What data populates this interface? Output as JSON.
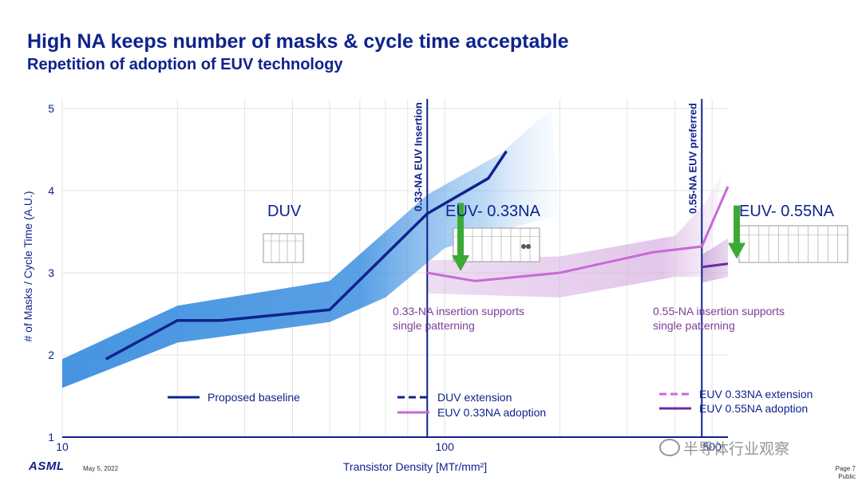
{
  "title": "High NA keeps number of masks & cycle time acceptable",
  "subtitle": "Repetition of adoption of EUV technology",
  "footer": {
    "logo": "ASML",
    "date": "May 5, 2022",
    "page": "Page 7",
    "classification": "Public",
    "watermark": "半导体行业观察"
  },
  "chart_data": {
    "type": "line",
    "xlabel": "Transistor Density [MTr/mm²]",
    "ylabel": "# of Masks / Cycle Time (A.U.)",
    "x_scale": "log",
    "xlim": [
      10,
      550
    ],
    "ylim": [
      1,
      5
    ],
    "x_ticks": [
      {
        "value": 10,
        "label": "10"
      },
      {
        "value": 100,
        "label": "100"
      },
      {
        "value": 500,
        "label": "500"
      }
    ],
    "y_ticks": [
      {
        "value": 1,
        "label": "1"
      },
      {
        "value": 2,
        "label": "2"
      },
      {
        "value": 3,
        "label": "3"
      },
      {
        "value": 4,
        "label": "4"
      },
      {
        "value": 5,
        "label": "5"
      }
    ],
    "grid": true,
    "colors": {
      "baseline": "#0f238c",
      "duv_band": "#3c8fe0",
      "euv033": "#c76ad6",
      "euv033_band": "#d8b4e2",
      "euv055": "#6a2aa8",
      "euv055_band": "#c9a8d8",
      "arrow": "#3aaa35",
      "region_label": "#0f238c",
      "note": "#7b3f98"
    },
    "series": [
      {
        "name": "Proposed baseline",
        "style": "solid",
        "color": "#0f238c",
        "points": [
          [
            13,
            1.95
          ],
          [
            20,
            2.42
          ],
          [
            26,
            2.42
          ],
          [
            50,
            2.55
          ],
          [
            90,
            3.72
          ],
          [
            130,
            4.15
          ],
          [
            145,
            4.48
          ]
        ]
      },
      {
        "name": "DUV extension",
        "style": "dashed",
        "color": "#0f238c",
        "points": []
      },
      {
        "name": "EUV 0.33NA adoption",
        "style": "solid",
        "color": "#c76ad6",
        "points": [
          [
            90,
            3.0
          ],
          [
            120,
            2.9
          ],
          [
            200,
            3.0
          ],
          [
            350,
            3.25
          ],
          [
            470,
            3.32
          ]
        ]
      },
      {
        "name": "EUV 0.33NA extension",
        "style": "dashed",
        "color": "#c76ad6",
        "points": [
          [
            470,
            3.32
          ],
          [
            550,
            4.05
          ]
        ]
      },
      {
        "name": "EUV 0.55NA adoption",
        "style": "solid",
        "color": "#6a2aa8",
        "points": [
          [
            470,
            3.07
          ],
          [
            550,
            3.11
          ]
        ]
      }
    ],
    "bands": [
      {
        "series": "DUV extension",
        "color": "#3c8fe0",
        "upper": [
          [
            10,
            1.95
          ],
          [
            20,
            2.6
          ],
          [
            50,
            2.9
          ],
          [
            90,
            3.95
          ],
          [
            140,
            4.45
          ],
          [
            190,
            5.0
          ]
        ],
        "lower": [
          [
            10,
            1.6
          ],
          [
            20,
            2.15
          ],
          [
            50,
            2.4
          ],
          [
            70,
            2.7
          ],
          [
            100,
            3.3
          ],
          [
            150,
            3.55
          ],
          [
            200,
            3.7
          ]
        ]
      },
      {
        "series": "EUV 0.33NA adoption",
        "color": "#d8b4e2",
        "upper": [
          [
            90,
            3.15
          ],
          [
            200,
            3.2
          ],
          [
            400,
            3.45
          ],
          [
            480,
            3.85
          ],
          [
            530,
            4.2
          ]
        ],
        "lower": [
          [
            90,
            2.75
          ],
          [
            200,
            2.7
          ],
          [
            400,
            2.95
          ],
          [
            480,
            2.95
          ]
        ]
      },
      {
        "series": "EUV 0.55NA adoption",
        "color": "#c9a8d8",
        "upper": [
          [
            470,
            3.22
          ],
          [
            550,
            3.42
          ]
        ],
        "lower": [
          [
            470,
            2.88
          ],
          [
            550,
            2.95
          ]
        ]
      }
    ],
    "vlines": [
      {
        "x": 90,
        "label": "0.33-NA EUV Insertion"
      },
      {
        "x": 470,
        "label": "0.55-NA EUV preferred"
      }
    ],
    "region_labels": [
      {
        "text": "DUV",
        "x": 38,
        "y": 3.75
      },
      {
        "text": "EUV- 0.33NA",
        "x": 185,
        "y": 3.75
      },
      {
        "text": "EUV- 0.55NA",
        "x": 600,
        "y": 3.75
      }
    ],
    "annotations": [
      {
        "text": "0.33-NA insertion supports single patterning",
        "lines": [
          "0.33-NA insertion supports",
          "single patterning"
        ]
      },
      {
        "text": "0.55-NA insertion supports single patterning",
        "lines": [
          "0.55-NA insertion supports",
          "single patterning"
        ]
      }
    ],
    "arrows": [
      {
        "x": 110,
        "y_from": 3.85,
        "y_to": 3.02
      },
      {
        "x": 580,
        "y_from": 3.82,
        "y_to": 3.17
      }
    ],
    "legend": {
      "placement": "bottom",
      "entries": [
        {
          "label": "Proposed baseline",
          "style": "solid",
          "color": "#0f238c"
        },
        {
          "label": "DUV extension",
          "style": "dashed",
          "color": "#0f238c"
        },
        {
          "label": "EUV 0.33NA adoption",
          "style": "solid",
          "color": "#c76ad6"
        },
        {
          "label": "EUV 0.33NA extension",
          "style": "dashed",
          "color": "#c76ad6"
        },
        {
          "label": "EUV 0.55NA adoption",
          "style": "solid",
          "color": "#6a2aa8"
        }
      ]
    }
  }
}
